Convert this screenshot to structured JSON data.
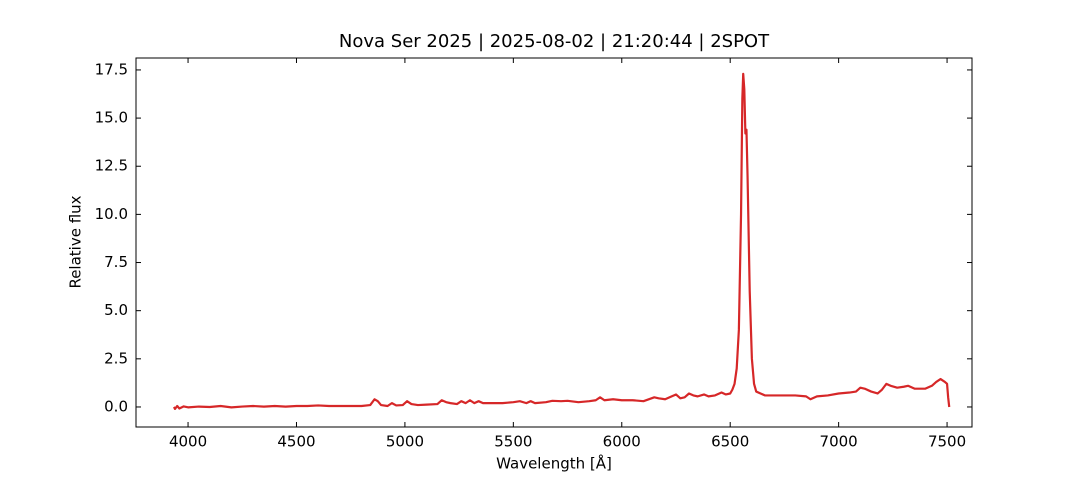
{
  "chart_data": {
    "type": "line",
    "title": "Nova Ser 2025 | 2025-08-02 | 21:20:44 | 2SPOT",
    "xlabel": "Wavelength [Å]",
    "ylabel": "Relative flux",
    "color": "#d62728",
    "x": [
      3935,
      3940,
      3950,
      3960,
      3980,
      4000,
      4050,
      4100,
      4150,
      4200,
      4250,
      4300,
      4350,
      4400,
      4450,
      4500,
      4550,
      4600,
      4650,
      4700,
      4750,
      4800,
      4840,
      4860,
      4875,
      4890,
      4920,
      4940,
      4960,
      4990,
      5010,
      5030,
      5060,
      5100,
      5150,
      5170,
      5190,
      5210,
      5240,
      5260,
      5280,
      5300,
      5320,
      5340,
      5360,
      5400,
      5450,
      5500,
      5530,
      5560,
      5580,
      5600,
      5650,
      5680,
      5720,
      5750,
      5800,
      5850,
      5880,
      5900,
      5920,
      5960,
      6000,
      6050,
      6100,
      6150,
      6170,
      6200,
      6230,
      6250,
      6270,
      6290,
      6310,
      6330,
      6350,
      6380,
      6400,
      6430,
      6460,
      6480,
      6500,
      6510,
      6520,
      6530,
      6540,
      6550,
      6556,
      6560,
      6565,
      6570,
      6575,
      6580,
      6590,
      6600,
      6610,
      6620,
      6640,
      6660,
      6700,
      6750,
      6800,
      6850,
      6870,
      6900,
      6950,
      7000,
      7050,
      7080,
      7100,
      7120,
      7150,
      7180,
      7200,
      7220,
      7240,
      7270,
      7300,
      7320,
      7350,
      7400,
      7430,
      7450,
      7470,
      7490,
      7500,
      7505,
      7510
    ],
    "values": [
      0.0,
      -0.1,
      0.05,
      -0.08,
      0.03,
      -0.02,
      0.02,
      0.0,
      0.05,
      -0.02,
      0.02,
      0.05,
      0.02,
      0.05,
      0.02,
      0.05,
      0.05,
      0.08,
      0.05,
      0.05,
      0.05,
      0.05,
      0.1,
      0.4,
      0.3,
      0.1,
      0.05,
      0.2,
      0.08,
      0.1,
      0.3,
      0.15,
      0.1,
      0.12,
      0.15,
      0.35,
      0.25,
      0.2,
      0.15,
      0.3,
      0.2,
      0.35,
      0.2,
      0.3,
      0.2,
      0.2,
      0.2,
      0.25,
      0.3,
      0.2,
      0.3,
      0.2,
      0.25,
      0.32,
      0.3,
      0.32,
      0.25,
      0.3,
      0.35,
      0.5,
      0.35,
      0.4,
      0.35,
      0.35,
      0.3,
      0.5,
      0.45,
      0.4,
      0.55,
      0.65,
      0.45,
      0.5,
      0.7,
      0.6,
      0.55,
      0.65,
      0.55,
      0.6,
      0.75,
      0.65,
      0.7,
      0.9,
      1.2,
      2.0,
      4.0,
      10.0,
      16.0,
      17.3,
      16.5,
      14.2,
      14.4,
      12.0,
      6.0,
      2.5,
      1.2,
      0.8,
      0.7,
      0.6,
      0.6,
      0.6,
      0.6,
      0.55,
      0.4,
      0.55,
      0.6,
      0.7,
      0.75,
      0.8,
      1.0,
      0.95,
      0.8,
      0.7,
      0.9,
      1.2,
      1.1,
      1.0,
      1.05,
      1.1,
      0.95,
      0.95,
      1.1,
      1.3,
      1.45,
      1.3,
      1.2,
      0.5,
      0.0
    ],
    "xlim": [
      3760,
      7615
    ],
    "ylim": [
      -1.04,
      18.12
    ],
    "xticks": [
      4000,
      4500,
      5000,
      5500,
      6000,
      6500,
      7000,
      7500
    ],
    "yticks": [
      {
        "value": 0,
        "label": "0.0"
      },
      2.5,
      {
        "value": 5,
        "label": "5.0"
      },
      7.5,
      {
        "value": 10,
        "label": "10.0"
      },
      12.5,
      {
        "value": 15,
        "label": "15.0"
      },
      17.5
    ]
  }
}
